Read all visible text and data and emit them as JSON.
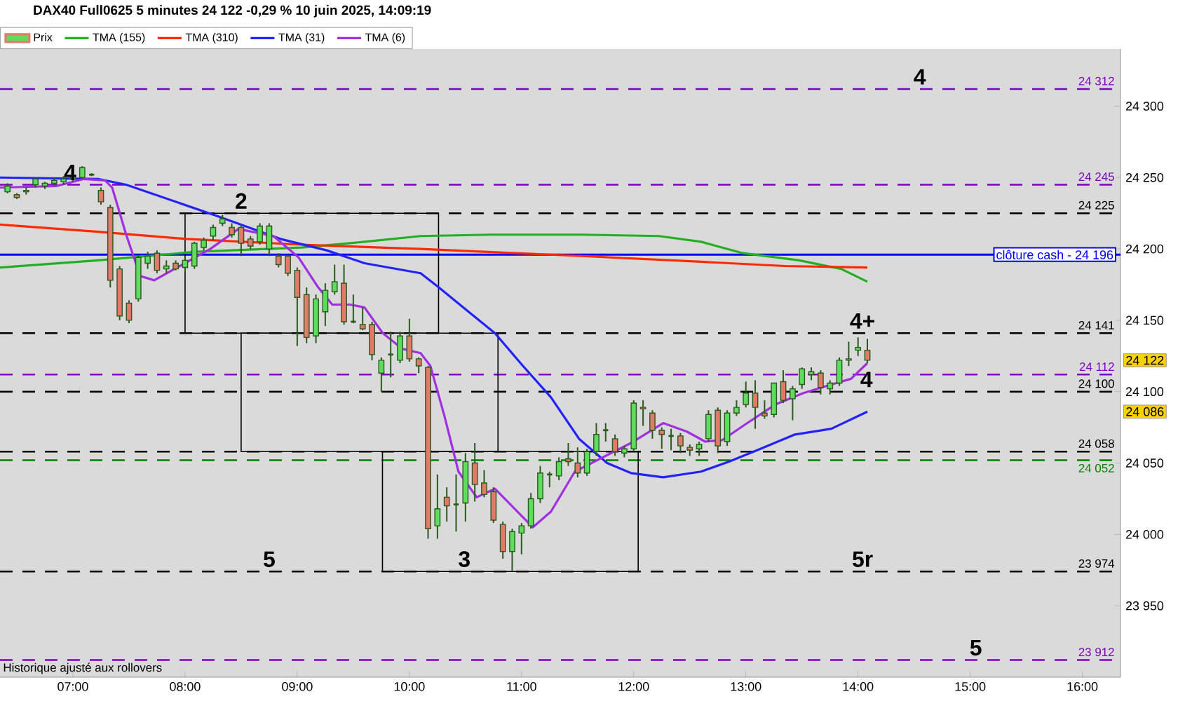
{
  "chart_data": {
    "type": "candlestick",
    "title": "DAX40 Full0625 5 minutes 24 122 -0,29 % 10 juin 2025, 14:09:19",
    "legend": "top left",
    "xlim": [
      6.35,
      16.34
    ],
    "ylim": [
      23900,
      24340
    ],
    "xticks": [
      {
        "value": 7,
        "label": "07:00"
      },
      {
        "value": 8,
        "label": "08:00"
      },
      {
        "value": 9,
        "label": "09:00"
      },
      {
        "value": 10,
        "label": "10:00"
      },
      {
        "value": 11,
        "label": "11:00"
      },
      {
        "value": 12,
        "label": "12:00"
      },
      {
        "value": 13,
        "label": "13:00"
      },
      {
        "value": 14,
        "label": "14:00"
      },
      {
        "value": 15,
        "label": "15:00"
      },
      {
        "value": 16,
        "label": "16:00"
      }
    ],
    "yticks": [
      {
        "value": 23950,
        "label": "23 950"
      },
      {
        "value": 24000,
        "label": "24 000"
      },
      {
        "value": 24050,
        "label": "24 050"
      },
      {
        "value": 24100,
        "label": "24 100"
      },
      {
        "value": 24150,
        "label": "24 150"
      },
      {
        "value": 24200,
        "label": "24 200"
      },
      {
        "value": 24250,
        "label": "24 250"
      },
      {
        "value": 24300,
        "label": "24 300"
      }
    ],
    "series": [
      {
        "name": "Prix",
        "type": "candlestick",
        "x": [
          6.4167,
          6.5,
          6.5833,
          6.6667,
          6.75,
          6.8333,
          6.9167,
          7,
          7.0833,
          7.1667,
          7.25,
          7.3333,
          7.4167,
          7.5,
          7.5833,
          7.6667,
          7.75,
          7.8333,
          7.9167,
          8,
          8.0833,
          8.1667,
          8.25,
          8.3333,
          8.4167,
          8.5,
          8.5833,
          8.6667,
          8.75,
          8.8333,
          8.9167,
          9,
          9.0833,
          9.1667,
          9.25,
          9.3333,
          9.4167,
          9.5,
          9.5833,
          9.6667,
          9.75,
          9.8333,
          9.9167,
          10,
          10.0833,
          10.1667,
          10.25,
          10.3333,
          10.4167,
          10.5,
          10.5833,
          10.6667,
          10.75,
          10.8333,
          10.9167,
          11,
          11.0833,
          11.1667,
          11.25,
          11.3333,
          11.4167,
          11.5,
          11.5833,
          11.6667,
          11.75,
          11.8333,
          11.9167,
          12,
          12.0833,
          12.1667,
          12.25,
          12.3333,
          12.4167,
          12.5,
          12.5833,
          12.6667,
          12.75,
          12.8333,
          12.9167,
          13,
          13.0833,
          13.1667,
          13.25,
          13.3333,
          13.4167,
          13.5,
          13.5833,
          13.6667,
          13.75,
          13.8333,
          13.9167,
          14,
          14.0833
        ],
        "ohlc": [
          [
            24240,
            24246,
            24239,
            24244
          ],
          [
            24238,
            24239,
            24235,
            24236
          ],
          [
            24240,
            24243,
            24238,
            24241
          ],
          [
            24245,
            24250,
            24243,
            24249
          ],
          [
            24244,
            24247,
            24242,
            24246
          ],
          [
            24246,
            24250,
            24244,
            24248
          ],
          [
            24247,
            24251,
            24245,
            24249
          ],
          [
            24249,
            24253,
            24247,
            24251
          ],
          [
            24250,
            24258,
            24249,
            24257
          ],
          [
            24252,
            24253,
            24251,
            24252
          ],
          [
            24241,
            24243,
            24231,
            24233
          ],
          [
            24229,
            24231,
            24173,
            24178
          ],
          [
            24186,
            24188,
            24150,
            24153
          ],
          [
            24162,
            24164,
            24148,
            24150
          ],
          [
            24165,
            24196,
            24163,
            24194
          ],
          [
            24190,
            24198,
            24186,
            24195
          ],
          [
            24197,
            24199,
            24183,
            24185
          ],
          [
            24186,
            24192,
            24183,
            24188
          ],
          [
            24190,
            24192,
            24185,
            24186
          ],
          [
            24187,
            24194,
            24184,
            24192
          ],
          [
            24188,
            24205,
            24186,
            24204
          ],
          [
            24201,
            24208,
            24199,
            24206
          ],
          [
            24209,
            24217,
            24206,
            24215
          ],
          [
            24218,
            24224,
            24216,
            24221
          ],
          [
            24215,
            24218,
            24208,
            24210
          ],
          [
            24215,
            24217,
            24195,
            24204
          ],
          [
            24207,
            24209,
            24200,
            24202
          ],
          [
            24205,
            24218,
            24203,
            24216
          ],
          [
            24200,
            24218,
            24195,
            24216
          ],
          [
            24195,
            24197,
            24187,
            24189
          ],
          [
            24195,
            24196,
            24181,
            24183
          ],
          [
            24185,
            24187,
            24132,
            24166
          ],
          [
            24168,
            24173,
            24134,
            24138
          ],
          [
            24139,
            24168,
            24134,
            24165
          ],
          [
            24156,
            24176,
            24146,
            24171
          ],
          [
            24170,
            24189,
            24168,
            24177
          ],
          [
            24176,
            24189,
            24147,
            24149
          ],
          [
            24149,
            24168,
            24148,
            24149
          ],
          [
            24147,
            24159,
            24143,
            24144
          ],
          [
            24147,
            24149,
            24122,
            24126
          ],
          [
            24113,
            24124,
            24100,
            24122
          ],
          [
            24126,
            24142,
            24110,
            24126
          ],
          [
            24122,
            24142,
            24120,
            24139
          ],
          [
            24139,
            24151,
            24121,
            24123
          ],
          [
            24123,
            24124,
            24113,
            24118
          ],
          [
            24117,
            24118,
            23997,
            24004
          ],
          [
            24006,
            24042,
            23997,
            24018
          ],
          [
            24026,
            24033,
            24009,
            24020
          ],
          [
            24021,
            24042,
            24002,
            24021
          ],
          [
            24022,
            24057,
            24009,
            24051
          ],
          [
            24050,
            24064,
            24023,
            24035
          ],
          [
            24036,
            24045,
            24026,
            24028
          ],
          [
            24030,
            24033,
            24008,
            24010
          ],
          [
            24007,
            24009,
            23983,
            23988
          ],
          [
            23988,
            24004,
            23974,
            24002
          ],
          [
            24001,
            24008,
            23986,
            24006
          ],
          [
            24006,
            24029,
            24004,
            24025
          ],
          [
            24025,
            24048,
            24022,
            24043
          ],
          [
            24042,
            24044,
            24033,
            24042
          ],
          [
            24041,
            24054,
            24038,
            24051
          ],
          [
            24053,
            24064,
            24048,
            24051
          ],
          [
            24050,
            24061,
            24040,
            24043
          ],
          [
            24043,
            24060,
            24041,
            24058
          ],
          [
            24058,
            24078,
            24055,
            24070
          ],
          [
            24073,
            24078,
            24065,
            24073
          ],
          [
            24067,
            24070,
            24055,
            24058
          ],
          [
            24057,
            24062,
            24054,
            24060
          ],
          [
            24060,
            24094,
            24058,
            24092
          ],
          [
            24089,
            24094,
            24076,
            24088
          ],
          [
            24085,
            24087,
            24067,
            24073
          ],
          [
            24073,
            24075,
            24060,
            24070
          ],
          [
            24069,
            24074,
            24059,
            24069
          ],
          [
            24069,
            24071,
            24057,
            24062
          ],
          [
            24061,
            24063,
            24055,
            24059
          ],
          [
            24060,
            24065,
            24055,
            24063
          ],
          [
            24067,
            24087,
            24065,
            24084
          ],
          [
            24087,
            24089,
            24057,
            24062
          ],
          [
            24065,
            24087,
            24062,
            24085
          ],
          [
            24085,
            24094,
            24083,
            24089
          ],
          [
            24091,
            24107,
            24089,
            24099
          ],
          [
            24099,
            24108,
            24074,
            24089
          ],
          [
            24085,
            24094,
            24081,
            24083
          ],
          [
            24084,
            24106,
            24082,
            24106
          ],
          [
            24107,
            24115,
            24092,
            24094
          ],
          [
            24095,
            24104,
            24080,
            24102
          ],
          [
            24105,
            24117,
            24102,
            24116
          ],
          [
            24112,
            24117,
            24108,
            24114
          ],
          [
            24113,
            24115,
            24098,
            24103
          ],
          [
            24102,
            24108,
            24098,
            24106
          ],
          [
            24106,
            24124,
            24104,
            24122
          ],
          [
            24122,
            24135,
            24118,
            24123
          ],
          [
            24129,
            24138,
            24125,
            24131
          ],
          [
            24129,
            24137,
            24120,
            24122
          ]
        ]
      },
      {
        "name": "TMA (155)",
        "type": "line",
        "color": "#22b022",
        "x": [
          6.35,
          7.225,
          8.1,
          9.0375,
          9.6,
          10.1,
          10.725,
          11.5375,
          12.225,
          12.6,
          12.975,
          13.475,
          13.85,
          14.083
        ],
        "values": [
          24187,
          24192,
          24198,
          24201,
          24205,
          24209,
          24210,
          24210,
          24209,
          24205,
          24197,
          24192,
          24186,
          24177
        ]
      },
      {
        "name": "TMA (310)",
        "type": "line",
        "color": "#ff2a00",
        "x": [
          6.35,
          7.225,
          8.0125,
          9.0375,
          10.1,
          11.5375,
          12.6,
          13.35,
          14.083
        ],
        "values": [
          24217,
          24212,
          24207,
          24203,
          24200,
          24195,
          24191,
          24188,
          24187
        ]
      },
      {
        "name": "TMA (31)",
        "type": "line",
        "color": "#2222ff",
        "x": [
          6.35,
          7.225,
          7.475,
          8.2875,
          8.85,
          9.2625,
          9.6,
          10.1,
          10.2625,
          10.5125,
          10.7625,
          11.0125,
          11.2625,
          11.5125,
          11.7625,
          11.975,
          12.2625,
          12.6,
          12.85,
          13.1,
          13.4375,
          13.7625,
          14.083
        ],
        "values": [
          24250,
          24249,
          24245,
          24223,
          24207,
          24199,
          24190,
          24183,
          24173,
          24157,
          24141,
          24118,
          24096,
          24067,
          24050,
          24043,
          24040,
          24044,
          24051,
          24059,
          24070,
          24074,
          24086
        ]
      },
      {
        "name": "TMA (6)",
        "type": "line",
        "color": "#a030e0",
        "x": [
          6.35,
          6.85,
          7.1,
          7.2875,
          7.35,
          7.475,
          7.6,
          7.725,
          7.975,
          8.225,
          8.475,
          8.7875,
          9.0125,
          9.1875,
          9.3125,
          9.475,
          9.6,
          9.7625,
          9.9375,
          10.1,
          10.1875,
          10.3125,
          10.4375,
          10.6,
          10.7625,
          10.9375,
          11.1,
          11.2625,
          11.475,
          11.725,
          11.975,
          12.2625,
          12.475,
          12.6375,
          12.7875,
          13.0125,
          13.2625,
          13.5125,
          13.7625,
          13.9375,
          14.083
        ],
        "values": [
          24243,
          24244,
          24249,
          24248,
          24243,
          24210,
          24181,
          24178,
          24189,
          24200,
          24214,
          24209,
          24194,
          24173,
          24161,
          24161,
          24159,
          24141,
          24130,
          24127,
          24118,
          24083,
          24044,
          24026,
          24032,
          24018,
          24005,
          24016,
          24044,
          24054,
          24064,
          24078,
          24072,
          24065,
          24066,
          24078,
          24091,
          24099,
          24105,
          24109,
          24120
        ]
      }
    ],
    "ref_lines": [
      {
        "axis": "y",
        "value": 24312,
        "label": "24 312",
        "color": "#8000c0",
        "line_style": "dashed"
      },
      {
        "axis": "y",
        "value": 24245,
        "label": "24 245",
        "color": "#8000c0",
        "line_style": "dashed"
      },
      {
        "axis": "y",
        "value": 24112,
        "label": "24 112",
        "color": "#8000c0",
        "line_style": "dashed"
      },
      {
        "axis": "y",
        "value": 23912,
        "label": "23 912",
        "color": "#8000c0",
        "line_style": "dashed"
      },
      {
        "axis": "y",
        "value": 24225,
        "label": "24 225",
        "color": "#000000",
        "line_style": "dashed"
      },
      {
        "axis": "y",
        "value": 24141,
        "label": "24 141",
        "color": "#000000",
        "line_style": "dashed"
      },
      {
        "axis": "y",
        "value": 24100,
        "label": "24 100",
        "color": "#000000",
        "line_style": "dashed"
      },
      {
        "axis": "y",
        "value": 24058,
        "label": "24 058",
        "color": "#000000",
        "line_style": "dashed"
      },
      {
        "axis": "y",
        "value": 23974,
        "label": "23 974",
        "color": "#000000",
        "line_style": "dashed"
      },
      {
        "axis": "y",
        "value": 24052,
        "label": "24 052",
        "color": "#008000",
        "line_style": "dashed"
      },
      {
        "axis": "y",
        "value": 24196,
        "label": "clôture cash -  24 196",
        "color": "#0000ff",
        "line_style": "solid"
      }
    ],
    "annotations": [
      {
        "text": "4",
        "x": 6.975,
        "y": 24245
      },
      {
        "text": "2",
        "x": 8.5,
        "y": 24225
      },
      {
        "text": "5",
        "x": 8.75,
        "y": 23974
      },
      {
        "text": "3",
        "x": 10.49,
        "y": 23974
      },
      {
        "text": "4+",
        "x": 14.04,
        "y": 24141
      },
      {
        "text": "4",
        "x": 14.075,
        "y": 24100
      },
      {
        "text": "5r",
        "x": 14.04,
        "y": 23974
      },
      {
        "text": "4",
        "x": 14.55,
        "y": 24312
      },
      {
        "text": "5",
        "x": 15.05,
        "y": 23912
      },
      {
        "text": "24 122",
        "y": 24122
      },
      {
        "text": "24 086",
        "y": 24086
      },
      "Historique ajusté aux rollovers"
    ]
  }
}
